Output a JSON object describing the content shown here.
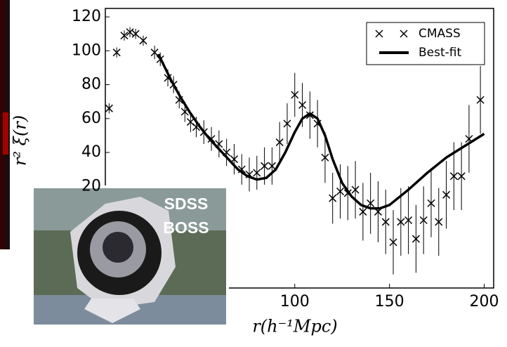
{
  "chart_data": {
    "type": "scatter",
    "xlabel": "r(h⁻¹Mpc)",
    "ylabel": "r² ξ(r)",
    "xlim": [
      0,
      205
    ],
    "ylim": [
      -40,
      125
    ],
    "xticks": [
      100,
      150,
      200
    ],
    "yticks": [
      20,
      40,
      60,
      80,
      100,
      120
    ],
    "legend": "upper right",
    "annotations": [
      "SDSS",
      "BOSS"
    ],
    "series": [
      {
        "name": "CMASS",
        "style": "marker",
        "color": "#000000",
        "x": [
          2,
          6,
          10,
          13,
          16,
          20,
          26,
          29,
          33,
          36,
          39,
          42,
          45,
          48,
          52,
          56,
          60,
          64,
          68,
          72,
          76,
          80,
          84,
          88,
          92,
          96,
          100,
          104,
          108,
          112,
          116,
          120,
          124,
          128,
          132,
          136,
          140,
          144,
          148,
          152,
          156,
          160,
          164,
          168,
          172,
          176,
          180,
          184,
          188,
          192,
          198
        ],
        "values": [
          66,
          99,
          109,
          111,
          110,
          106,
          99,
          95,
          84,
          80,
          71,
          64,
          58,
          55,
          52,
          48,
          45,
          40,
          36,
          30,
          27,
          28,
          32,
          32,
          46,
          57,
          74,
          68,
          62,
          57,
          37,
          13,
          17,
          16,
          18,
          5,
          10,
          5,
          -1,
          -13,
          -1,
          0,
          -11,
          0,
          10,
          -1,
          15,
          26,
          26,
          48,
          71
        ],
        "errors": [
          3,
          3,
          3,
          3,
          3,
          3,
          4,
          4,
          5,
          5,
          5,
          6,
          6,
          6,
          7,
          7,
          8,
          8,
          9,
          9,
          10,
          10,
          11,
          11,
          12,
          12,
          13,
          13,
          14,
          14,
          15,
          15,
          16,
          16,
          17,
          17,
          18,
          18,
          19,
          19,
          20,
          20,
          20,
          20,
          20,
          20,
          20,
          20,
          20,
          20,
          20
        ]
      },
      {
        "name": "Best-fit",
        "style": "line",
        "color": "#000000",
        "x": [
          28,
          35,
          40,
          45,
          50,
          55,
          60,
          65,
          70,
          75,
          80,
          85,
          90,
          95,
          100,
          104,
          108,
          112,
          116,
          120,
          125,
          130,
          135,
          140,
          145,
          150,
          160,
          170,
          180,
          190,
          200
        ],
        "values": [
          98,
          82,
          72,
          63,
          55,
          48,
          42,
          36,
          30,
          26,
          24,
          25,
          30,
          40,
          52,
          60,
          63,
          60,
          50,
          36,
          22,
          14,
          9,
          7,
          7,
          9,
          18,
          28,
          37,
          44,
          51
        ]
      }
    ]
  }
}
